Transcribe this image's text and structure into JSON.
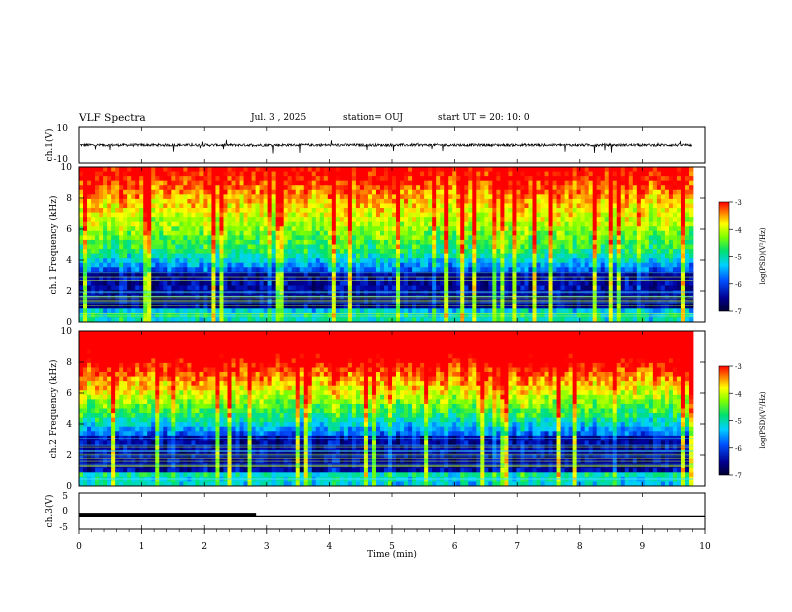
{
  "header": {
    "title": "VLF Spectra",
    "date": "Jul. 3 , 2025",
    "station": "station= OUJ",
    "start": "start UT =  20: 10: 0"
  },
  "chart_data": [
    {
      "type": "line",
      "panel": "ch.1 waveform",
      "ylabel": "ch.1(V)",
      "ylim": [
        -10,
        10
      ],
      "y_ticks": [
        "10",
        "-10"
      ],
      "xlim": [
        0,
        10
      ],
      "baseline": 0,
      "noise_amplitude_estimate": 1.5
    },
    {
      "type": "heatmap",
      "panel": "ch.1 spectrogram",
      "ylabel": "ch.1 Frequency (kHz)",
      "ylim": [
        0,
        10
      ],
      "y_ticks": [
        "0",
        "2",
        "4",
        "6",
        "8",
        "10"
      ],
      "xlim": [
        0,
        10
      ],
      "colorbar": {
        "label": "log(PSD)(V²/Hz)",
        "range": [
          -7,
          -3
        ],
        "ticks": [
          "-3",
          "-4",
          "-5",
          "-6",
          "-7"
        ]
      }
    },
    {
      "type": "heatmap",
      "panel": "ch.2 spectrogram",
      "ylabel": "ch.2 Frequency (kHz)",
      "ylim": [
        0,
        10
      ],
      "y_ticks": [
        "0",
        "2",
        "4",
        "6",
        "8",
        "10"
      ],
      "xlim": [
        0,
        10
      ],
      "colorbar": {
        "label": "log(PSD)(V²/Hz)",
        "range": [
          -7,
          -3
        ],
        "ticks": [
          "-3",
          "-4",
          "-5",
          "-6",
          "-7"
        ]
      }
    },
    {
      "type": "line",
      "panel": "ch.3 level",
      "ylabel": "ch.3(V)",
      "ylim": [
        -5,
        5
      ],
      "y_ticks": [
        "5",
        "0",
        "-5"
      ],
      "xlim": [
        0,
        10
      ],
      "xlabel": "Time (min)",
      "x_ticks": [
        "0",
        "1",
        "2",
        "3",
        "4",
        "5",
        "6",
        "7",
        "8",
        "9",
        "10"
      ],
      "series": [
        {
          "x": [
            0,
            10
          ],
          "y": [
            -1.5,
            -1.5
          ]
        },
        {
          "x": [
            0,
            2.83
          ],
          "y": [
            -1.0,
            -1.0
          ]
        }
      ]
    }
  ]
}
